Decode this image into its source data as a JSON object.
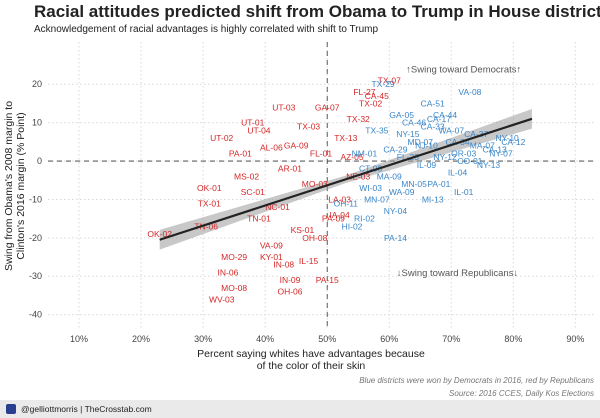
{
  "title": "Racial attitudes predicted shift from Obama to Trump in House districts",
  "subtitle": "Acknowledgement of racial advantages is highly correlated with shift to Trump",
  "caption": "Blue districts were won by Democrats in 2016, red by Republicans",
  "source": "Source: 2016 CCES, Daily Kos Elections",
  "footer": "@gelliottmorris | TheCrosstab.com",
  "colors": {
    "dem": "#3a86c8",
    "rep": "#d62728",
    "trend": "#222222",
    "band": "#9a9a9a",
    "grid": "#d9d9d9"
  },
  "chart_data": {
    "type": "scatter",
    "xlabel": "Percent saying whites have advantages because of the color of their skin",
    "ylabel": "Swing from Obama's 2008 margin to Clinton's 2016 margin (% Point)",
    "xlim": [
      5,
      93
    ],
    "ylim": [
      -44,
      31
    ],
    "xticks": [
      10,
      20,
      30,
      40,
      50,
      60,
      70,
      80,
      90
    ],
    "xtick_labels": [
      "10%",
      "20%",
      "30%",
      "40%",
      "50%",
      "60%",
      "70%",
      "80%",
      "90%"
    ],
    "yticks": [
      -40,
      -30,
      -20,
      -10,
      0,
      10,
      20
    ],
    "grid": true,
    "reference_lines": {
      "x": 50,
      "y": 0
    },
    "annotations": [
      {
        "text": "↑Swing toward Democrats↑",
        "x": 72,
        "y": 23
      },
      {
        "text": "↓Swing toward Republicans↓",
        "x": 71,
        "y": -30
      }
    ],
    "trend": {
      "x": [
        23,
        83
      ],
      "y": [
        -20.5,
        11
      ]
    },
    "series": [
      {
        "party": "R",
        "points": [
          {
            "label": "OK-02",
            "x": 23,
            "y": -19
          },
          {
            "label": "TN-06",
            "x": 30.5,
            "y": -17
          },
          {
            "label": "OK-01",
            "x": 31,
            "y": -7
          },
          {
            "label": "TX-01",
            "x": 31,
            "y": -11
          },
          {
            "label": "MO-29",
            "x": 35,
            "y": -25
          },
          {
            "label": "MO-08",
            "x": 35,
            "y": -33
          },
          {
            "label": "IN-06",
            "x": 34,
            "y": -29
          },
          {
            "label": "WV-03",
            "x": 33,
            "y": -36
          },
          {
            "label": "VA-09",
            "x": 41,
            "y": -22
          },
          {
            "label": "IN-08",
            "x": 43,
            "y": -27
          },
          {
            "label": "KY-01",
            "x": 41,
            "y": -25
          },
          {
            "label": "OH-06",
            "x": 44,
            "y": -34
          },
          {
            "label": "IN-09",
            "x": 44,
            "y": -31
          },
          {
            "label": "IL-15",
            "x": 47,
            "y": -26
          },
          {
            "label": "PA-15",
            "x": 50,
            "y": -31
          },
          {
            "label": "UT-01",
            "x": 38,
            "y": 10
          },
          {
            "label": "UT-03",
            "x": 43,
            "y": 14
          },
          {
            "label": "UT-04",
            "x": 39,
            "y": 8
          },
          {
            "label": "UT-02",
            "x": 33,
            "y": 6
          },
          {
            "label": "AL-06",
            "x": 41,
            "y": 3.5
          },
          {
            "label": "GA-07",
            "x": 50,
            "y": 14
          },
          {
            "label": "TX-03",
            "x": 47,
            "y": 9
          },
          {
            "label": "FL-27",
            "x": 56,
            "y": 18
          },
          {
            "label": "TX-02",
            "x": 57,
            "y": 15
          },
          {
            "label": "TX-07",
            "x": 60,
            "y": 21
          },
          {
            "label": "TX-32",
            "x": 55,
            "y": 11
          },
          {
            "label": "CA-45",
            "x": 58,
            "y": 17
          },
          {
            "label": "PA-01",
            "x": 36,
            "y": 2
          },
          {
            "label": "MS-02",
            "x": 37,
            "y": -4
          },
          {
            "label": "NC-01",
            "x": 42,
            "y": -12
          },
          {
            "label": "SC-01",
            "x": 38,
            "y": -8
          },
          {
            "label": "KS-01",
            "x": 46,
            "y": -18
          },
          {
            "label": "TN-01",
            "x": 39,
            "y": -15
          },
          {
            "label": "AR-01",
            "x": 44,
            "y": -2
          },
          {
            "label": "MO-03",
            "x": 48,
            "y": -6
          },
          {
            "label": "LA-03",
            "x": 52,
            "y": -10
          },
          {
            "label": "NE-03",
            "x": 55,
            "y": -4
          },
          {
            "label": "IA-04",
            "x": 52,
            "y": -14
          },
          {
            "label": "OH-08",
            "x": 48,
            "y": -20
          },
          {
            "label": "GA-09",
            "x": 45,
            "y": 4
          },
          {
            "label": "FL-01",
            "x": 49,
            "y": 2
          },
          {
            "label": "TX-13",
            "x": 53,
            "y": 6
          },
          {
            "label": "AZ-05",
            "x": 54,
            "y": 1
          },
          {
            "label": "PA-09",
            "x": 51,
            "y": -15
          }
        ]
      },
      {
        "party": "D",
        "points": [
          {
            "label": "VA-08",
            "x": 73,
            "y": 18
          },
          {
            "label": "CA-51",
            "x": 67,
            "y": 15
          },
          {
            "label": "CA-17",
            "x": 68,
            "y": 11
          },
          {
            "label": "CA-13",
            "x": 77,
            "y": 3
          },
          {
            "label": "NY-10",
            "x": 79,
            "y": 6
          },
          {
            "label": "NY-13",
            "x": 76,
            "y": -1
          },
          {
            "label": "PA-14",
            "x": 61,
            "y": -20
          },
          {
            "label": "MI-13",
            "x": 67,
            "y": -10
          },
          {
            "label": "IL-01",
            "x": 72,
            "y": -8
          },
          {
            "label": "IL-04",
            "x": 71,
            "y": -3
          },
          {
            "label": "PA-01",
            "x": 68,
            "y": -6
          },
          {
            "label": "RI-02",
            "x": 56,
            "y": -15
          },
          {
            "label": "HI-02",
            "x": 54,
            "y": -17
          },
          {
            "label": "MN-07",
            "x": 58,
            "y": -10
          },
          {
            "label": "WI-03",
            "x": 57,
            "y": -7
          },
          {
            "label": "MA-09",
            "x": 60,
            "y": -4
          },
          {
            "label": "CA-29",
            "x": 61,
            "y": 3
          },
          {
            "label": "NY-15",
            "x": 63,
            "y": 7
          },
          {
            "label": "TX-29",
            "x": 59,
            "y": 20
          },
          {
            "label": "CA-46",
            "x": 64,
            "y": 10
          },
          {
            "label": "MD-07",
            "x": 65,
            "y": 5
          },
          {
            "label": "WA-07",
            "x": 70,
            "y": 8
          },
          {
            "label": "OR-03",
            "x": 72,
            "y": 2
          },
          {
            "label": "CA-37",
            "x": 74,
            "y": 7
          },
          {
            "label": "NY-12",
            "x": 69,
            "y": 1
          },
          {
            "label": "IL-09",
            "x": 66,
            "y": -1
          },
          {
            "label": "GA-05",
            "x": 62,
            "y": 12
          },
          {
            "label": "TX-35",
            "x": 58,
            "y": 8
          },
          {
            "label": "NM-01",
            "x": 56,
            "y": 2
          },
          {
            "label": "MN-05",
            "x": 64,
            "y": -6
          },
          {
            "label": "OH-11",
            "x": 53,
            "y": -11
          },
          {
            "label": "NY-04",
            "x": 61,
            "y": -13
          },
          {
            "label": "CT-03",
            "x": 57,
            "y": -2
          },
          {
            "label": "FL-23",
            "x": 63,
            "y": 1
          },
          {
            "label": "NJ-10",
            "x": 66,
            "y": 4
          },
          {
            "label": "CA-34",
            "x": 71,
            "y": 5
          },
          {
            "label": "MA-07",
            "x": 75,
            "y": 4
          },
          {
            "label": "WA-09",
            "x": 62,
            "y": -8
          },
          {
            "label": "CO-01",
            "x": 73,
            "y": 0
          },
          {
            "label": "NY-07",
            "x": 78,
            "y": 2
          },
          {
            "label": "CA-12",
            "x": 80,
            "y": 5
          },
          {
            "label": "CA-33",
            "x": 67,
            "y": 9
          },
          {
            "label": "CA-44",
            "x": 69,
            "y": 12
          }
        ]
      }
    ]
  }
}
